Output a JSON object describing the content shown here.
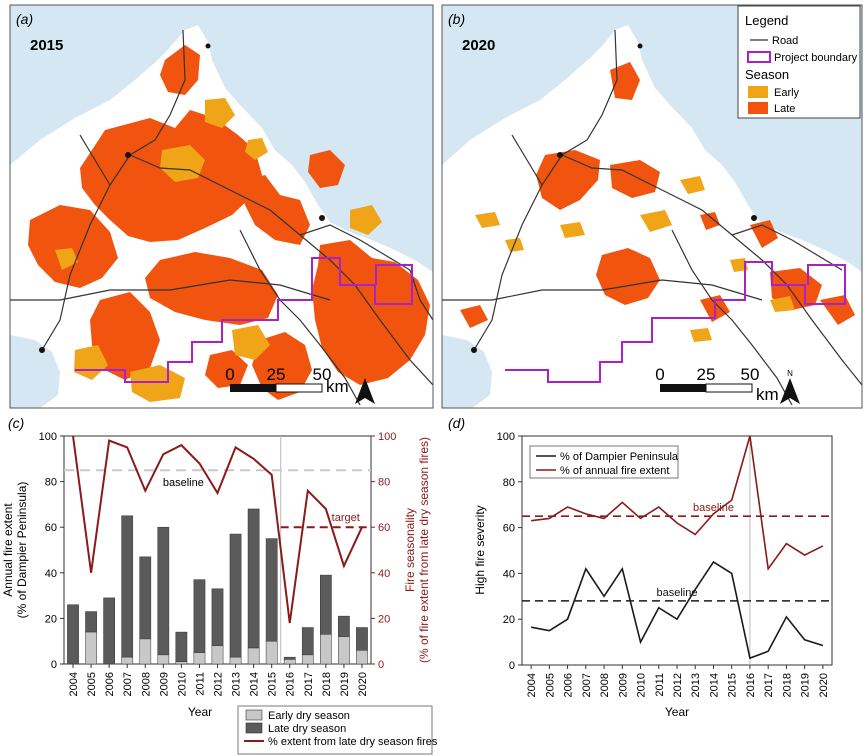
{
  "panels": {
    "a": {
      "label": "(a)",
      "year": "2015"
    },
    "b": {
      "label": "(b)",
      "year": "2020"
    },
    "c": {
      "label": "(c)"
    },
    "d": {
      "label": "(d)"
    }
  },
  "map_legend": {
    "title": "Legend",
    "road": "Road",
    "boundary": "Project boundary",
    "season_title": "Season",
    "early": "Early",
    "late": "Late",
    "colors": {
      "early": "#f0a417",
      "late": "#f0540f",
      "boundary": "#a922c9",
      "road": "#333333",
      "sea": "#d5e7f2",
      "land": "#ffffff"
    }
  },
  "scale_bar": {
    "ticks": [
      "0",
      "25",
      "50"
    ],
    "unit": "km",
    "north": "N"
  },
  "chart_data": [
    {
      "type": "bar",
      "panel": "c",
      "categories": [
        "2004",
        "2005",
        "2006",
        "2007",
        "2008",
        "2009",
        "2010",
        "2011",
        "2012",
        "2013",
        "2014",
        "2015",
        "2016",
        "2017",
        "2018",
        "2019",
        "2020"
      ],
      "series": [
        {
          "name": "Early dry season",
          "values": [
            0,
            14,
            0,
            3,
            11,
            4,
            1,
            5,
            8,
            3,
            7,
            10,
            2,
            4,
            13,
            12,
            6
          ],
          "color": "#c8c8c8"
        },
        {
          "name": "Late dry season",
          "values": [
            26,
            9,
            29,
            62,
            36,
            56,
            13,
            32,
            25,
            54,
            61,
            45,
            1,
            12,
            26,
            9,
            10
          ],
          "color": "#5b5b5b"
        },
        {
          "name": "% extent from late dry season fires",
          "axis": "right",
          "values": [
            100,
            40,
            98,
            95,
            76,
            92,
            96,
            88,
            75,
            95,
            90,
            83,
            18,
            76,
            68,
            43,
            60
          ],
          "color": "#8b1a1a"
        }
      ],
      "ylabel": "Annual fire extent\n(% of Dampier Peninsula)",
      "ylabel_right": "Fire seasonality\n(% of fire extent from late dry season fires)",
      "xlabel": "Year",
      "ylim": [
        0,
        100
      ],
      "yticks": [
        "0",
        "20",
        "40",
        "60",
        "80",
        "100"
      ],
      "baseline": {
        "label": "baseline",
        "value": 85
      },
      "target": {
        "label": "target",
        "value": 60,
        "from": "2016",
        "to": "2020"
      },
      "legend": [
        "Early dry season",
        "Late dry season",
        "% extent from late dry season fires"
      ]
    },
    {
      "type": "line",
      "panel": "d",
      "x": [
        "2004",
        "2005",
        "2006",
        "2007",
        "2008",
        "2009",
        "2010",
        "2011",
        "2012",
        "2013",
        "2014",
        "2015",
        "2016",
        "2017",
        "2018",
        "2019",
        "2020"
      ],
      "series": [
        {
          "name": "% of Dampier Peninsula",
          "values": [
            16.5,
            15,
            20,
            42,
            30,
            42,
            10,
            25,
            20,
            33,
            45,
            40,
            3,
            6,
            21,
            11,
            8.5
          ],
          "color": "#1a1a1a"
        },
        {
          "name": "% of annual fire extent",
          "values": [
            63,
            64,
            69,
            66,
            64,
            71,
            64,
            69,
            62,
            57,
            66,
            72,
            100,
            42,
            53,
            48,
            52
          ],
          "color": "#8b1a1a"
        }
      ],
      "ylabel": "High fire severity",
      "xlabel": "Year",
      "ylim": [
        0,
        100
      ],
      "yticks": [
        "0",
        "20",
        "40",
        "60",
        "80",
        "100"
      ],
      "baselines": [
        {
          "label": "baseline",
          "value": 65,
          "color": "#8b1a1a"
        },
        {
          "label": "baseline",
          "value": 28,
          "color": "#1a1a1a"
        }
      ]
    }
  ]
}
